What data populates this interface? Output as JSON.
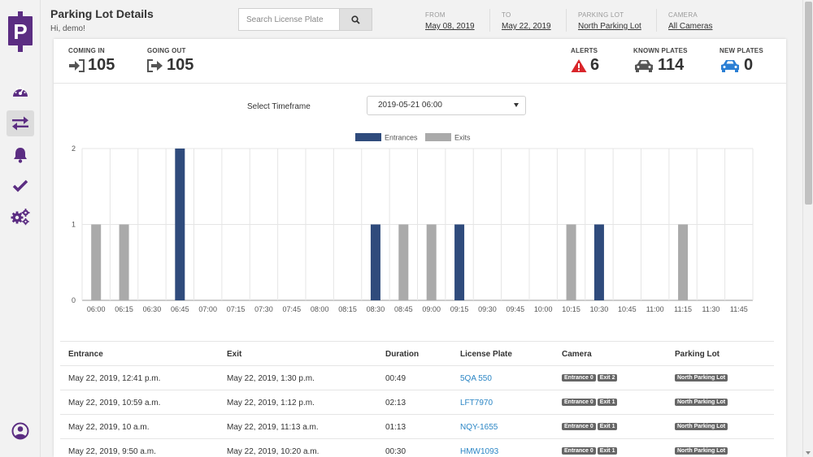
{
  "header": {
    "title": "Parking Lot Details",
    "greeting": "Hi, demo!",
    "search_placeholder": "Search License Plate",
    "filters": [
      {
        "label": "FROM",
        "value": "May 08, 2019"
      },
      {
        "label": "TO",
        "value": "May 22, 2019"
      },
      {
        "label": "PARKING LOT",
        "value": "North Parking Lot"
      },
      {
        "label": "CAMERA",
        "value": "All Cameras"
      }
    ]
  },
  "sidebar": {
    "logo_letter": "P",
    "items": [
      "dashboard-icon",
      "transfer-arrows-icon",
      "bell-icon",
      "check-icon",
      "cogs-icon",
      "user-icon"
    ],
    "active": "transfer-arrows-icon"
  },
  "stats": {
    "coming_in": {
      "label": "COMING IN",
      "value": "105"
    },
    "going_out": {
      "label": "GOING OUT",
      "value": "105"
    },
    "alerts": {
      "label": "ALERTS",
      "value": "6"
    },
    "known_plates": {
      "label": "KNOWN PLATES",
      "value": "114"
    },
    "new_plates": {
      "label": "NEW PLATES",
      "value": "0"
    }
  },
  "timeframe": {
    "label": "Select Timeframe",
    "selected": "2019-05-21 06:00"
  },
  "colors": {
    "brand": "#5b2d82",
    "entrances": "#2f4b7c",
    "exits": "#aaaaaa",
    "alert": "#d9252a",
    "new_plates": "#2b7fd4",
    "link": "#2b86c5"
  },
  "chart_data": {
    "type": "bar",
    "categories": [
      "06:00",
      "06:15",
      "06:30",
      "06:45",
      "07:00",
      "07:15",
      "07:30",
      "07:45",
      "08:00",
      "08:15",
      "08:30",
      "08:45",
      "09:00",
      "09:15",
      "09:30",
      "09:45",
      "10:00",
      "10:15",
      "10:30",
      "10:45",
      "11:00",
      "11:15",
      "11:30",
      "11:45"
    ],
    "series": [
      {
        "name": "Entrances",
        "values": [
          0,
          0,
          0,
          2,
          0,
          0,
          0,
          0,
          0,
          0,
          1,
          0,
          0,
          1,
          0,
          0,
          0,
          0,
          1,
          0,
          0,
          0,
          0,
          0
        ]
      },
      {
        "name": "Exits",
        "values": [
          1,
          1,
          0,
          0,
          0,
          0,
          0,
          0,
          0,
          0,
          0,
          1,
          1,
          0,
          0,
          0,
          0,
          1,
          0,
          0,
          0,
          1,
          0,
          0
        ]
      }
    ],
    "yticks": [
      "0",
      "1",
      "2"
    ],
    "ylim": [
      0,
      2
    ],
    "legend": "top",
    "grid": true
  },
  "table": {
    "headers": [
      "Entrance",
      "Exit",
      "Duration",
      "License Plate",
      "Camera",
      "Parking Lot"
    ],
    "rows": [
      {
        "entrance": "May 22, 2019, 12:41 p.m.",
        "exit": "May 22, 2019, 1:30 p.m.",
        "duration": "00:49",
        "plate": "5QA 550",
        "camera_in": "Entrance 0",
        "camera_out": "Exit 2",
        "lot": "North Parking Lot"
      },
      {
        "entrance": "May 22, 2019, 10:59 a.m.",
        "exit": "May 22, 2019, 1:12 p.m.",
        "duration": "02:13",
        "plate": "LFT7970",
        "camera_in": "Entrance 0",
        "camera_out": "Exit 1",
        "lot": "North Parking Lot"
      },
      {
        "entrance": "May 22, 2019, 10 a.m.",
        "exit": "May 22, 2019, 11:13 a.m.",
        "duration": "01:13",
        "plate": "NQY-1655",
        "camera_in": "Entrance 0",
        "camera_out": "Exit 1",
        "lot": "North Parking Lot"
      },
      {
        "entrance": "May 22, 2019, 9:50 a.m.",
        "exit": "May 22, 2019, 10:20 a.m.",
        "duration": "00:30",
        "plate": "HMW1093",
        "camera_in": "Entrance 0",
        "camera_out": "Exit 1",
        "lot": "North Parking Lot"
      }
    ]
  }
}
